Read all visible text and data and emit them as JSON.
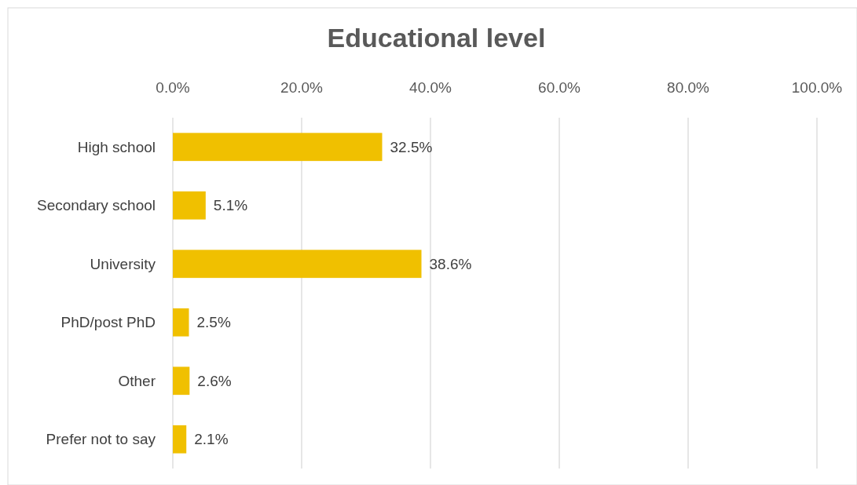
{
  "chart_data": {
    "type": "bar",
    "orientation": "horizontal",
    "title": "Educational level",
    "categories": [
      "High school",
      "Secondary school",
      "University",
      "PhD/post PhD",
      "Other",
      "Prefer not to say"
    ],
    "values": [
      32.5,
      5.1,
      38.6,
      2.5,
      2.6,
      2.1
    ],
    "value_labels": [
      "32.5%",
      "5.1%",
      "38.6%",
      "2.5%",
      "2.6%",
      "2.1%"
    ],
    "color": "#f0c000",
    "xlim": [
      0,
      100
    ],
    "xticks": [
      {
        "value": 0,
        "label": "0.0%"
      },
      {
        "value": 20,
        "label": "20.0%"
      },
      {
        "value": 40,
        "label": "40.0%"
      },
      {
        "value": 60,
        "label": "60.0%"
      },
      {
        "value": 80,
        "label": "80.0%"
      },
      {
        "value": 100,
        "label": "100.0%"
      }
    ],
    "grid": "x"
  }
}
